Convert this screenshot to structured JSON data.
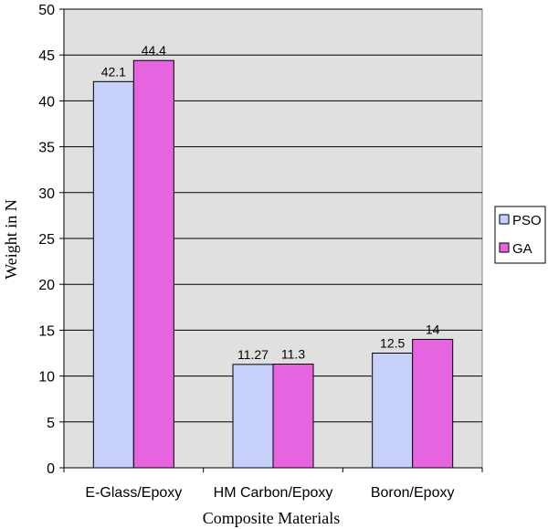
{
  "chart_data": {
    "type": "bar",
    "categories": [
      "E-Glass/Epoxy",
      "HM Carbon/Epoxy",
      "Boron/Epoxy"
    ],
    "series": [
      {
        "name": "PSO",
        "values": [
          42.1,
          11.27,
          12.5
        ],
        "labels": [
          "42.1",
          "11.27",
          "12.5"
        ],
        "color": "#c7d0fb"
      },
      {
        "name": "GA",
        "values": [
          44.4,
          11.3,
          14
        ],
        "labels": [
          "44.4",
          "11.3",
          "14"
        ],
        "color": "#e764e0"
      }
    ],
    "xlabel": "Composite Materials",
    "ylabel": "Weight in N",
    "ylim": [
      0,
      50
    ],
    "yticks": [
      0,
      5,
      10,
      15,
      20,
      25,
      30,
      35,
      40,
      45,
      50
    ],
    "grid": true,
    "legend": "right",
    "plot_background": "#e0e0e0"
  }
}
